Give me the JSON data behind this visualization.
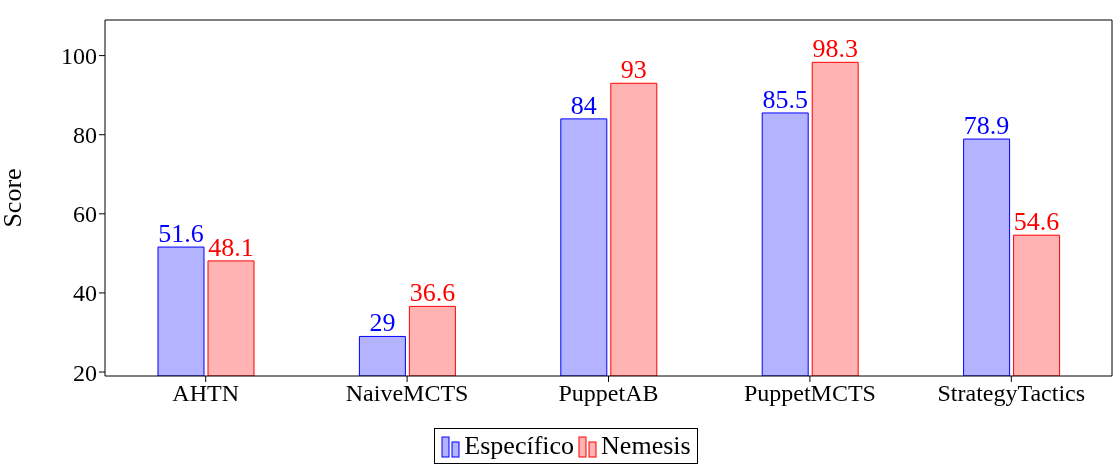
{
  "chart_data": {
    "type": "bar",
    "ylabel": "Score",
    "categories": [
      "AHTN",
      "NaiveMCTS",
      "PuppetAB",
      "PuppetMCTS",
      "StrategyTactics"
    ],
    "series": [
      {
        "name": "Específico",
        "color": "#b3b3ff",
        "values": [
          51.6,
          29,
          84,
          85.5,
          78.9
        ]
      },
      {
        "name": "Nemesis",
        "color": "#ffb3b3",
        "values": [
          48.1,
          36.6,
          93,
          98.3,
          54.6
        ]
      }
    ],
    "ylim": [
      19,
      109
    ],
    "yticks": [
      20,
      40,
      60,
      80,
      100
    ],
    "grid": false,
    "legend": "bottom",
    "data_labels": true
  }
}
